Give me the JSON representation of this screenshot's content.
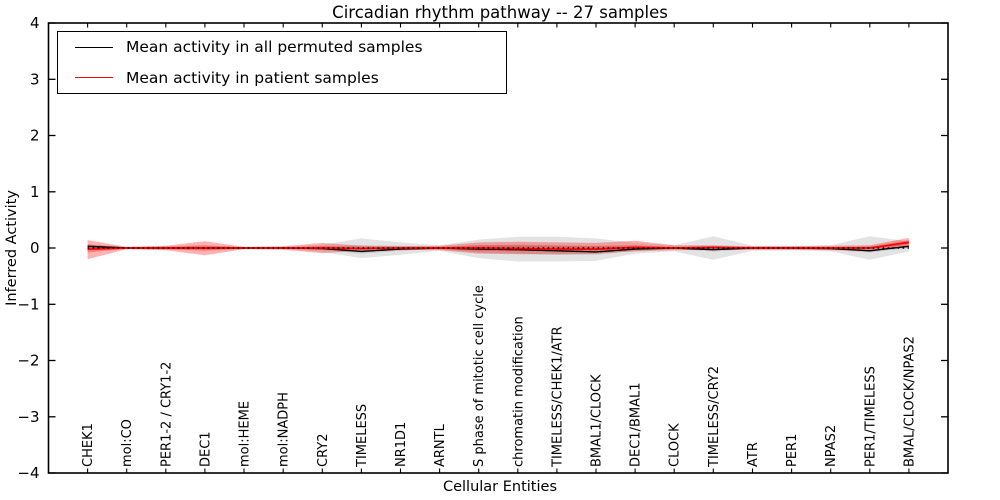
{
  "title": "Circadian rhythm pathway -- 27 samples",
  "legend": {
    "items": [
      {
        "label": "Mean activity in all permuted samples",
        "color": "#000000"
      },
      {
        "label": "Mean activity in patient samples",
        "color": "#ff0000"
      }
    ]
  },
  "chart_data": {
    "type": "line",
    "title": "Circadian rhythm pathway -- 27 samples",
    "xlabel": "Cellular Entities",
    "ylabel": "Inferred Activity",
    "ylim": [
      -4,
      4
    ],
    "yticks": [
      4,
      3,
      2,
      1,
      0,
      -1,
      -2,
      -3,
      -4
    ],
    "grid": false,
    "legend_position": "upper left",
    "zero_line": true,
    "categories": [
      "CHEK1",
      "mol:CO",
      "PER1-2 / CRY1-2",
      "DEC1",
      "mol:HEME",
      "mol:NADPH",
      "CRY2",
      "TIMELESS",
      "NR1D1",
      "ARNTL",
      "S phase of mitotic cell cycle",
      "chromatin modification",
      "TIMELESS/CHEK1/ATR",
      "BMAL1/CLOCK",
      "DEC1/BMAL1",
      "CLOCK",
      "TIMELESS/CRY2",
      "ATR",
      "PER1",
      "NPAS2",
      "PER1/TIMELESS",
      "BMAL/CLOCK/NPAS2"
    ],
    "series": [
      {
        "name": "Mean activity in all permuted samples",
        "color": "#000000",
        "line_width": 1.4,
        "band_color_outer": "rgba(0,0,0,0.11)",
        "band_color_inner": "rgba(0,0,0,0.12)",
        "mean": [
          0.03,
          0.0,
          0.0,
          0.0,
          0.0,
          0.0,
          -0.01,
          -0.06,
          -0.02,
          0.0,
          -0.02,
          -0.03,
          -0.05,
          -0.07,
          -0.02,
          0.0,
          -0.03,
          0.0,
          0.0,
          -0.01,
          -0.05,
          0.03
        ],
        "outer_hi": [
          0.07,
          0.02,
          0.03,
          0.04,
          0.02,
          0.02,
          0.06,
          0.17,
          0.1,
          0.05,
          0.15,
          0.2,
          0.2,
          0.17,
          0.09,
          0.05,
          0.21,
          0.04,
          0.04,
          0.05,
          0.21,
          0.12
        ],
        "outer_lo": [
          -0.05,
          -0.02,
          -0.03,
          -0.04,
          -0.02,
          -0.02,
          -0.07,
          -0.18,
          -0.12,
          -0.05,
          -0.18,
          -0.24,
          -0.24,
          -0.23,
          -0.1,
          -0.06,
          -0.21,
          -0.05,
          -0.04,
          -0.06,
          -0.21,
          -0.06
        ],
        "inner_hi": [
          0.05,
          0.01,
          0.01,
          0.02,
          0.01,
          0.01,
          0.03,
          0.05,
          0.04,
          0.02,
          0.05,
          0.06,
          0.05,
          0.03,
          0.03,
          0.02,
          0.03,
          0.02,
          0.02,
          0.02,
          0.03,
          0.06
        ],
        "inner_lo": [
          -0.02,
          -0.01,
          -0.01,
          -0.02,
          -0.01,
          -0.01,
          -0.03,
          -0.1,
          -0.05,
          -0.02,
          -0.08,
          -0.1,
          -0.12,
          -0.12,
          -0.05,
          -0.02,
          -0.06,
          -0.02,
          -0.02,
          -0.03,
          -0.08,
          0.0
        ]
      },
      {
        "name": "Mean activity in patient samples",
        "color": "#ff0000",
        "line_width": 1.8,
        "band_color_outer": "rgba(255,0,0,0.30)",
        "band_color_inner": "rgba(255,0,0,0.28)",
        "mean": [
          -0.02,
          0.0,
          0.0,
          0.0,
          0.0,
          0.0,
          0.0,
          -0.01,
          0.0,
          0.0,
          0.0,
          -0.01,
          -0.02,
          -0.02,
          0.01,
          0.0,
          0.01,
          0.0,
          0.0,
          0.0,
          0.0,
          0.1
        ],
        "outer_hi": [
          0.14,
          0.02,
          0.04,
          0.12,
          0.02,
          0.03,
          0.09,
          0.04,
          0.03,
          0.04,
          0.1,
          0.11,
          0.1,
          0.09,
          0.13,
          0.05,
          0.05,
          0.03,
          0.03,
          0.04,
          0.05,
          0.18
        ],
        "outer_lo": [
          -0.2,
          -0.02,
          -0.04,
          -0.13,
          -0.02,
          -0.03,
          -0.09,
          -0.05,
          -0.03,
          -0.04,
          -0.1,
          -0.11,
          -0.11,
          -0.1,
          -0.06,
          -0.04,
          -0.03,
          -0.03,
          -0.03,
          -0.04,
          -0.04,
          0.02
        ],
        "inner_hi": [
          0.06,
          0.01,
          0.02,
          0.05,
          0.01,
          0.01,
          0.03,
          0.02,
          0.01,
          0.02,
          0.05,
          0.05,
          0.04,
          0.04,
          0.05,
          0.02,
          0.03,
          0.01,
          0.01,
          0.02,
          0.02,
          0.14
        ],
        "inner_lo": [
          -0.08,
          -0.01,
          -0.02,
          -0.05,
          -0.01,
          -0.01,
          -0.03,
          -0.02,
          -0.01,
          -0.02,
          -0.05,
          -0.05,
          -0.06,
          -0.05,
          -0.02,
          -0.02,
          -0.01,
          -0.01,
          -0.01,
          -0.02,
          -0.02,
          0.06
        ]
      }
    ]
  }
}
